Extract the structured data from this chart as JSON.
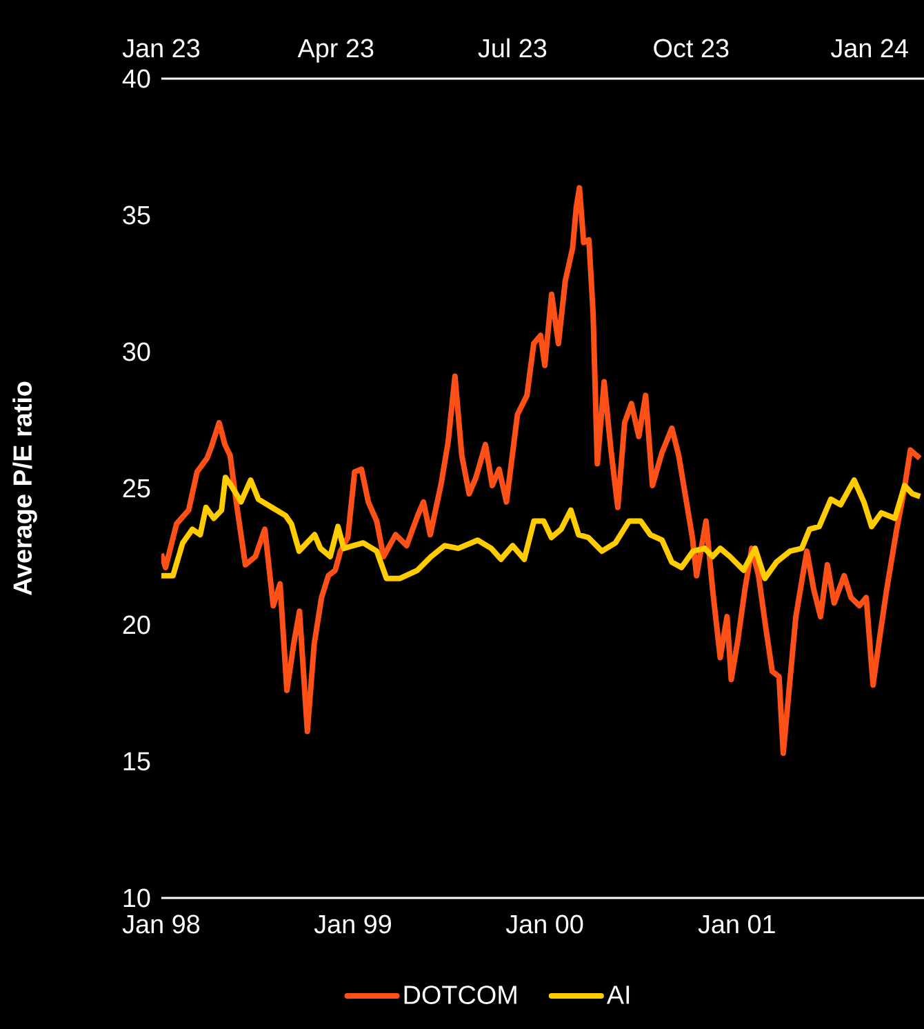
{
  "chart_data": {
    "type": "line",
    "ylabel": "Average P/E ratio",
    "xlim": [
      "1998-01-01",
      "2001-12-23"
    ],
    "xticks": [
      {
        "value": "1998-01-01",
        "label": "Jan 98"
      },
      {
        "value": "1999-01-01",
        "label": "Jan 99"
      },
      {
        "value": "2000-01-01",
        "label": "Jan 00"
      },
      {
        "value": "2001-01-01",
        "label": "Jan 01"
      }
    ],
    "x2lim": [
      "2023-01-01",
      "2024-01-29"
    ],
    "x2ticks": [
      {
        "value": "2023-01-01",
        "label": "Jan 23"
      },
      {
        "value": "2023-04-01",
        "label": "Apr 23"
      },
      {
        "value": "2023-07-01",
        "label": "Jul 23"
      },
      {
        "value": "2023-10-01",
        "label": "Oct 23"
      },
      {
        "value": "2024-01-01",
        "label": "Jan 24"
      }
    ],
    "ylim": [
      10,
      40
    ],
    "yticks": [
      10,
      15,
      20,
      25,
      30,
      35,
      40
    ],
    "legend": "bottom",
    "line_style": "solid",
    "series": [
      {
        "name": "DOTCOM",
        "color": "#ff5018",
        "x": [
          "1998-01-01",
          "1998-01-09",
          "1998-01-30",
          "1998-02-22",
          "1998-03-10",
          "1998-03-29",
          "1998-04-06",
          "1998-04-21",
          "1998-05-02",
          "1998-05-12",
          "1998-05-25",
          "1998-06-10",
          "1998-06-29",
          "1998-07-17",
          "1998-08-02",
          "1998-08-15",
          "1998-08-28",
          "1998-09-10",
          "1998-09-21",
          "1998-10-06",
          "1998-10-19",
          "1998-11-02",
          "1998-11-15",
          "1998-11-28",
          "1998-12-08",
          "1998-12-22",
          "1999-01-04",
          "1999-01-17",
          "1999-01-30",
          "1999-02-15",
          "1999-02-28",
          "1999-03-23",
          "1999-04-13",
          "1999-05-04",
          "1999-05-15",
          "1999-05-28",
          "1999-06-18",
          "1999-07-01",
          "1999-07-14",
          "1999-07-27",
          "1999-08-10",
          "1999-08-23",
          "1999-09-10",
          "1999-09-23",
          "1999-10-06",
          "1999-10-20",
          "1999-11-10",
          "1999-11-28",
          "1999-12-11",
          "1999-12-24",
          "2000-01-01",
          "2000-01-14",
          "2000-01-27",
          "2000-02-09",
          "2000-02-23",
          "2000-03-01",
          "2000-03-07",
          "2000-03-15",
          "2000-03-25",
          "2000-04-02",
          "2000-04-10",
          "2000-04-23",
          "2000-05-06",
          "2000-05-19",
          "2000-06-01",
          "2000-06-14",
          "2000-06-28",
          "2000-07-11",
          "2000-07-24",
          "2000-08-11",
          "2000-08-30",
          "2000-09-12",
          "2000-09-25",
          "2000-10-08",
          "2000-10-16",
          "2000-11-03",
          "2000-11-16",
          "2000-11-30",
          "2000-12-13",
          "2000-12-21",
          "2001-01-03",
          "2001-01-16",
          "2001-01-29",
          "2001-02-11",
          "2001-02-24",
          "2001-03-09",
          "2001-03-22",
          "2001-03-30",
          "2001-04-10",
          "2001-04-23",
          "2001-05-06",
          "2001-05-14",
          "2001-05-27",
          "2001-06-09",
          "2001-06-22",
          "2001-07-05",
          "2001-07-24",
          "2001-08-06",
          "2001-08-22",
          "2001-09-04",
          "2001-09-17",
          "2001-09-30",
          "2001-10-13",
          "2001-11-01",
          "2001-11-14",
          "2001-11-27",
          "2001-12-15"
        ],
        "values": [
          22.6,
          22.1,
          23.7,
          24.2,
          25.6,
          26.1,
          26.5,
          27.4,
          26.6,
          26.2,
          24.3,
          22.2,
          22.5,
          23.5,
          20.7,
          21.5,
          17.6,
          19.3,
          20.5,
          16.1,
          19.3,
          21.0,
          21.8,
          22.0,
          22.7,
          23.2,
          25.6,
          25.7,
          24.5,
          23.8,
          22.5,
          23.3,
          22.9,
          24.0,
          24.5,
          23.3,
          25.2,
          26.7,
          29.1,
          26.2,
          24.8,
          25.4,
          26.6,
          25.1,
          25.7,
          24.5,
          27.7,
          28.4,
          30.3,
          30.6,
          29.5,
          32.1,
          30.3,
          32.6,
          33.8,
          35.3,
          36.0,
          34.0,
          34.1,
          31.4,
          25.9,
          28.9,
          26.4,
          24.3,
          27.4,
          28.1,
          26.9,
          28.4,
          25.1,
          26.3,
          27.2,
          26.2,
          24.7,
          23.2,
          21.8,
          23.8,
          21.2,
          18.8,
          20.3,
          18.0,
          19.5,
          21.3,
          22.8,
          21.8,
          20.0,
          18.3,
          18.1,
          15.3,
          17.6,
          20.3,
          21.8,
          22.7,
          21.3,
          20.3,
          22.2,
          20.8,
          21.8,
          21.0,
          20.7,
          21.0,
          17.8,
          19.6,
          21.3,
          23.5,
          24.8,
          26.4,
          26.1
        ]
      },
      {
        "name": "AI",
        "color": "#ffcc00",
        "axis": "x2",
        "x": [
          "2023-01-01",
          "2023-01-07",
          "2023-01-12",
          "2023-01-17",
          "2023-01-21",
          "2023-01-24",
          "2023-01-28",
          "2023-02-01",
          "2023-02-03",
          "2023-02-06",
          "2023-02-11",
          "2023-02-16",
          "2023-02-20",
          "2023-02-27",
          "2023-03-06",
          "2023-03-09",
          "2023-03-13",
          "2023-03-21",
          "2023-03-24",
          "2023-03-29",
          "2023-04-02",
          "2023-04-05",
          "2023-04-15",
          "2023-04-22",
          "2023-04-27",
          "2023-05-04",
          "2023-05-13",
          "2023-05-20",
          "2023-05-27",
          "2023-06-03",
          "2023-06-13",
          "2023-06-20",
          "2023-06-25",
          "2023-07-01",
          "2023-07-07",
          "2023-07-12",
          "2023-07-17",
          "2023-07-21",
          "2023-07-26",
          "2023-07-31",
          "2023-08-04",
          "2023-08-09",
          "2023-08-16",
          "2023-08-23",
          "2023-08-30",
          "2023-09-05",
          "2023-09-10",
          "2023-09-16",
          "2023-09-21",
          "2023-09-26",
          "2023-10-02",
          "2023-10-08",
          "2023-10-12",
          "2023-10-16",
          "2023-10-21",
          "2023-10-28",
          "2023-11-03",
          "2023-11-08",
          "2023-11-14",
          "2023-11-21",
          "2023-11-27",
          "2023-12-01",
          "2023-12-06",
          "2023-12-12",
          "2023-12-17",
          "2023-12-24",
          "2023-12-29",
          "2024-01-02",
          "2024-01-07",
          "2024-01-14",
          "2024-01-19",
          "2024-01-23",
          "2024-01-27"
        ],
        "values": [
          21.8,
          21.8,
          23.0,
          23.5,
          23.3,
          24.3,
          23.9,
          24.2,
          25.4,
          25.1,
          24.5,
          25.3,
          24.6,
          24.3,
          24.0,
          23.7,
          22.7,
          23.3,
          22.8,
          22.5,
          23.6,
          22.8,
          23.0,
          22.7,
          21.7,
          21.7,
          22.0,
          22.5,
          22.9,
          22.8,
          23.1,
          22.8,
          22.4,
          22.9,
          22.4,
          23.8,
          23.8,
          23.2,
          23.5,
          24.2,
          23.3,
          23.2,
          22.7,
          23.0,
          23.8,
          23.8,
          23.3,
          23.1,
          22.3,
          22.1,
          22.7,
          22.8,
          22.5,
          22.8,
          22.5,
          22.0,
          22.8,
          21.7,
          22.3,
          22.7,
          22.8,
          23.5,
          23.6,
          24.6,
          24.4,
          25.3,
          24.5,
          23.6,
          24.1,
          23.9,
          25.1,
          24.8,
          24.7
        ]
      }
    ]
  }
}
